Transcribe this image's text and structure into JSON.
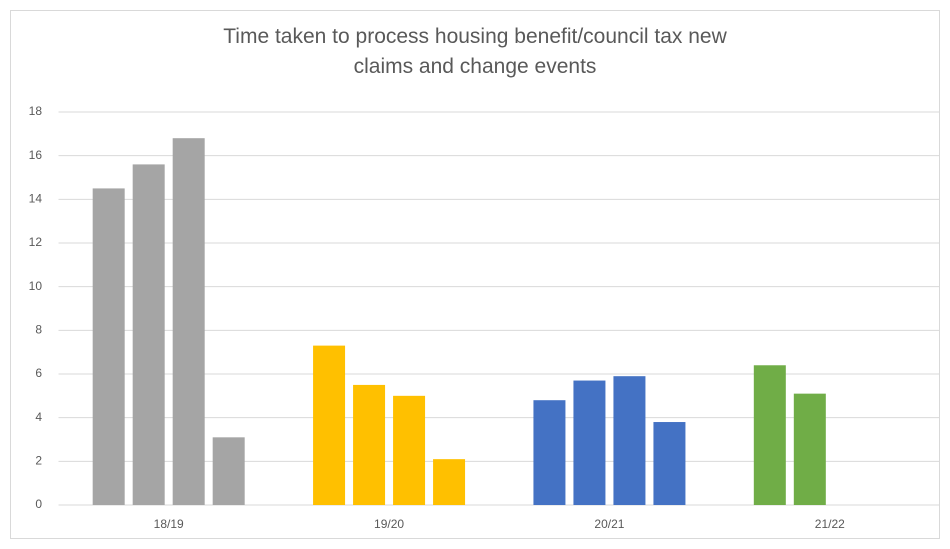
{
  "chart_data": {
    "type": "bar",
    "title": "Time taken to process housing benefit/council tax new claims and change events",
    "categories": [
      "18/19",
      "19/20",
      "20/21",
      "21/22"
    ],
    "values": [
      [
        14.5,
        15.6,
        16.8,
        3.1
      ],
      [
        7.3,
        5.5,
        5.0,
        2.1
      ],
      [
        4.8,
        5.7,
        5.9,
        3.8
      ],
      [
        6.4,
        5.1,
        null,
        null
      ]
    ],
    "colors": [
      "#a5a5a5",
      "#ffc000",
      "#4472c4",
      "#70ad47"
    ],
    "ylim": [
      0,
      18
    ],
    "yticks": [
      0,
      2,
      4,
      6,
      8,
      10,
      12,
      14,
      16,
      18
    ],
    "grid": true
  }
}
